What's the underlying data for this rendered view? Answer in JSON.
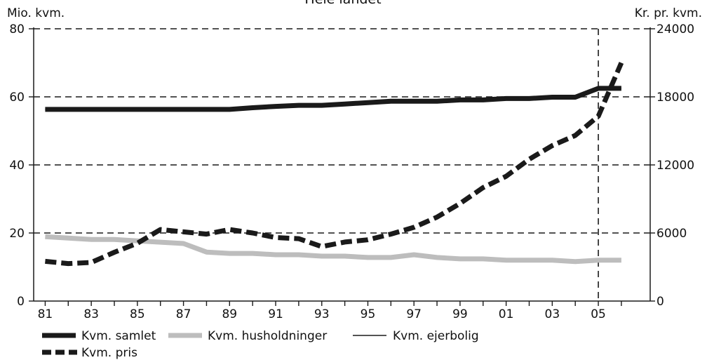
{
  "chart_data": {
    "type": "line",
    "title": "Hele landet",
    "y_left_label": "Mio. kvm.",
    "y_right_label": "Kr. pr. kvm.",
    "y_left_ticks": [
      0,
      20,
      40,
      60,
      80
    ],
    "y_right_ticks": [
      0,
      6000,
      12000,
      18000,
      24000
    ],
    "y_left_lim": [
      0,
      80
    ],
    "y_right_lim": [
      0,
      24000
    ],
    "x_tick_labels": [
      "81",
      "83",
      "85",
      "87",
      "89",
      "91",
      "93",
      "95",
      "97",
      "99",
      "01",
      "03",
      "05"
    ],
    "x": [
      1981,
      1982,
      1983,
      1984,
      1985,
      1986,
      1987,
      1988,
      1989,
      1990,
      1991,
      1992,
      1993,
      1994,
      1995,
      1996,
      1997,
      1998,
      1999,
      2000,
      2001,
      2002,
      2003,
      2004,
      2005,
      2006
    ],
    "vline_x": 2005.0,
    "grid": "dashed horizontal lines at left ticks",
    "legend_position": "bottom-left",
    "colors": {
      "dark": "#1a1a1a",
      "light": "#bdbdbd"
    },
    "series": [
      {
        "name": "Kvm. samlet",
        "axis": "left",
        "style": "thick-solid-dark",
        "values": [
          56.3,
          56.3,
          56.3,
          56.3,
          56.3,
          56.3,
          56.3,
          56.3,
          56.3,
          56.8,
          57.2,
          57.5,
          57.5,
          57.9,
          58.3,
          58.7,
          58.7,
          58.7,
          59.1,
          59.1,
          59.5,
          59.5,
          59.9,
          59.9,
          62.5,
          62.5
        ]
      },
      {
        "name": "Kvm. husholdninger",
        "axis": "left",
        "style": "thick-solid-light",
        "values": [
          18.9,
          18.5,
          18.1,
          18.1,
          17.7,
          17.3,
          16.9,
          14.4,
          14.0,
          14.0,
          13.6,
          13.6,
          13.2,
          13.2,
          12.8,
          12.8,
          13.6,
          12.8,
          12.4,
          12.4,
          12.0,
          12.0,
          12.0,
          11.6,
          12.0,
          12.0
        ]
      },
      {
        "name": "Kvm. ejerbolig",
        "axis": "left",
        "style": "thin-solid-dark",
        "values": [
          56.3,
          56.3,
          56.3,
          56.3,
          56.3,
          56.3,
          56.3,
          56.3,
          56.3,
          56.8,
          57.2,
          57.5,
          57.5,
          57.9,
          58.3,
          58.7,
          58.7,
          58.7,
          59.1,
          59.1,
          59.5,
          59.5,
          59.9,
          59.9,
          62.5,
          62.5
        ]
      },
      {
        "name": "Kvm. pris",
        "axis": "right",
        "style": "thick-dashed-dark",
        "values": [
          3500,
          3300,
          3400,
          4300,
          5100,
          6300,
          6100,
          5900,
          6300,
          6000,
          5600,
          5500,
          4800,
          5200,
          5400,
          5900,
          6500,
          7400,
          8600,
          10000,
          11000,
          12500,
          13700,
          14600,
          16300,
          21000
        ]
      }
    ]
  }
}
